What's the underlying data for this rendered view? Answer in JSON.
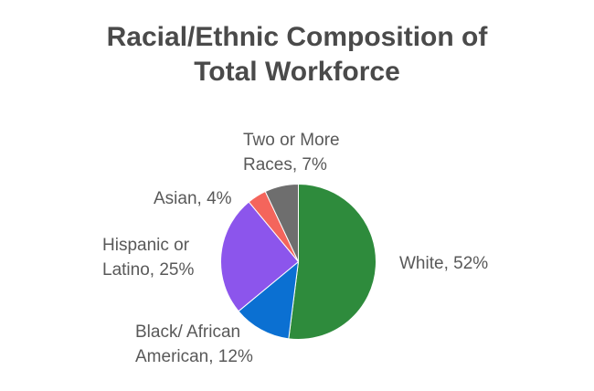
{
  "page": {
    "background_color": "#ffffff"
  },
  "chart_data": {
    "type": "pie",
    "title": "Racial/Ethnic Composition of Total Workforce",
    "title_lines": [
      "Racial/Ethnic Composition of",
      "Total Workforce"
    ],
    "title_color": "#4a4a4a",
    "label_color": "#595959",
    "start_angle_deg": 0,
    "direction": "clockwise",
    "legend": "none",
    "slices": [
      {
        "label": "White",
        "value_pct": 52,
        "color": "#2e8b3c",
        "callout_lines": [
          "White, 52%"
        ]
      },
      {
        "label": "Black/ African American",
        "value_pct": 12,
        "color": "#0b70d2",
        "callout_lines": [
          "Black/ African",
          "American, 12%"
        ]
      },
      {
        "label": "Hispanic or Latino",
        "value_pct": 25,
        "color": "#8c55ec",
        "callout_lines": [
          "Hispanic or",
          "Latino, 25%"
        ]
      },
      {
        "label": "Asian",
        "value_pct": 4,
        "color": "#f4655c",
        "callout_lines": [
          "Asian, 4%"
        ]
      },
      {
        "label": "Two or More Races",
        "value_pct": 7,
        "color": "#6e6e6e",
        "callout_lines": [
          "Two or More",
          "Races, 7%"
        ]
      }
    ]
  }
}
